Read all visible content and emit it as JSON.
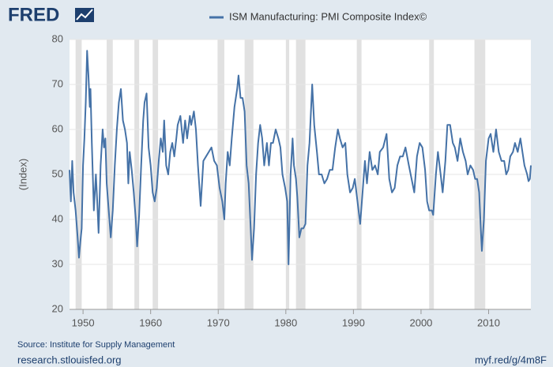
{
  "chart_data": {
    "type": "line",
    "logo": "FRED",
    "ylabel": "(Index)",
    "source": "Source: Institute for Supply Management",
    "site": "research.stlouisfed.org",
    "short_url": "myf.red/g/4m8F",
    "xlim": [
      1948,
      2016.25
    ],
    "xticks": [
      1950,
      1960,
      1970,
      1980,
      1990,
      2000,
      2010
    ],
    "ylim": [
      20,
      80
    ],
    "yticks": [
      20,
      30,
      40,
      50,
      60,
      70,
      80
    ],
    "grid": true,
    "recession_color": "#e1e1e1",
    "recessions": [
      [
        1948.9,
        1949.8
      ],
      [
        1953.5,
        1954.4
      ],
      [
        1957.6,
        1958.3
      ],
      [
        1960.3,
        1961.1
      ],
      [
        1969.9,
        1970.9
      ],
      [
        1973.9,
        1975.2
      ],
      [
        1980.0,
        1980.5
      ],
      [
        1981.5,
        1982.9
      ],
      [
        1990.5,
        1991.2
      ],
      [
        2001.2,
        2001.9
      ],
      [
        2007.9,
        2009.5
      ]
    ],
    "series": [
      {
        "name": "ISM Manufacturing: PMI Composite Index©",
        "color": "#4572a7",
        "x": [
          1948.0,
          1948.2,
          1948.4,
          1948.6,
          1948.9,
          1949.2,
          1949.4,
          1949.6,
          1949.8,
          1950.0,
          1950.2,
          1950.4,
          1950.6,
          1950.8,
          1951.0,
          1951.1,
          1951.3,
          1951.5,
          1951.6,
          1951.9,
          1952.1,
          1952.3,
          1952.6,
          1952.9,
          1953.1,
          1953.3,
          1953.5,
          1953.8,
          1954.1,
          1954.4,
          1954.7,
          1955.0,
          1955.3,
          1955.6,
          1955.9,
          1956.2,
          1956.5,
          1956.7,
          1956.9,
          1957.2,
          1957.5,
          1957.8,
          1958.0,
          1958.3,
          1958.6,
          1958.9,
          1959.1,
          1959.4,
          1959.7,
          1960.0,
          1960.3,
          1960.6,
          1960.9,
          1961.2,
          1961.5,
          1961.8,
          1962.0,
          1962.3,
          1962.6,
          1962.9,
          1963.2,
          1963.5,
          1963.8,
          1964.0,
          1964.4,
          1964.8,
          1965.1,
          1965.4,
          1965.8,
          1966.0,
          1966.4,
          1966.7,
          1967.0,
          1967.4,
          1967.8,
          1968.2,
          1968.6,
          1969.0,
          1969.4,
          1969.8,
          1970.2,
          1970.6,
          1970.9,
          1971.1,
          1971.4,
          1971.7,
          1972.0,
          1972.4,
          1972.8,
          1973.0,
          1973.3,
          1973.6,
          1973.9,
          1974.2,
          1974.5,
          1974.8,
          1975.0,
          1975.3,
          1975.6,
          1975.9,
          1976.2,
          1976.5,
          1976.8,
          1977.2,
          1977.5,
          1977.8,
          1978.1,
          1978.5,
          1978.9,
          1979.2,
          1979.5,
          1979.9,
          1980.2,
          1980.4,
          1980.7,
          1981.0,
          1981.2,
          1981.5,
          1981.7,
          1982.0,
          1982.3,
          1982.6,
          1982.9,
          1983.2,
          1983.5,
          1983.9,
          1984.2,
          1984.6,
          1984.9,
          1985.3,
          1985.7,
          1986.1,
          1986.5,
          1986.9,
          1987.3,
          1987.7,
          1988.0,
          1988.4,
          1988.8,
          1989.1,
          1989.5,
          1989.9,
          1990.2,
          1990.6,
          1991.0,
          1991.3,
          1991.7,
          1992.0,
          1992.4,
          1992.8,
          1993.2,
          1993.6,
          1993.9,
          1994.4,
          1994.9,
          1995.3,
          1995.7,
          1996.1,
          1996.5,
          1996.9,
          1997.3,
          1997.7,
          1998.2,
          1998.6,
          1999.0,
          1999.4,
          1999.8,
          2000.2,
          2000.6,
          2000.9,
          2001.2,
          2001.6,
          2001.8,
          2002.2,
          2002.5,
          2002.9,
          2003.2,
          2003.6,
          2003.9,
          2004.3,
          2004.7,
          2005.0,
          2005.4,
          2005.8,
          2006.2,
          2006.6,
          2006.9,
          2007.3,
          2007.7,
          2008.0,
          2008.3,
          2008.6,
          2008.9,
          2009.0,
          2009.3,
          2009.6,
          2010.0,
          2010.3,
          2010.7,
          2011.1,
          2011.5,
          2011.9,
          2012.3,
          2012.6,
          2012.9,
          2013.2,
          2013.6,
          2013.9,
          2014.3,
          2014.7,
          2014.9,
          2015.3,
          2015.7,
          2015.9,
          2016.1,
          2016.25
        ],
        "values": [
          51,
          44,
          53,
          46,
          42,
          36,
          31.5,
          35,
          38,
          52,
          58,
          66,
          77.5,
          72,
          65,
          69,
          57,
          47,
          42,
          50,
          44,
          37,
          52,
          60,
          56,
          58,
          48,
          42,
          36,
          42,
          52,
          60,
          66,
          69,
          62,
          60,
          57,
          48,
          55,
          51,
          46,
          40,
          34,
          41,
          52,
          62,
          66,
          68,
          56,
          52,
          46,
          44,
          47,
          53,
          58,
          55,
          62,
          52,
          50,
          55,
          57,
          54,
          58,
          61,
          63,
          57,
          62,
          58,
          63,
          61,
          64,
          60,
          52,
          43,
          53,
          54,
          55,
          56,
          53,
          52,
          47,
          44,
          40,
          48,
          55,
          52,
          58,
          65,
          69,
          72,
          67,
          67,
          64,
          52,
          48,
          38,
          31,
          38,
          50,
          57,
          61,
          58,
          52,
          57,
          52,
          57,
          57,
          60,
          58,
          56,
          50,
          47,
          44,
          30,
          50,
          58,
          52,
          49,
          45,
          36,
          38,
          38,
          39,
          52,
          57,
          70,
          61,
          55,
          50,
          50,
          48,
          49,
          51,
          51,
          56,
          60,
          58,
          56,
          57,
          50,
          46,
          47,
          49,
          44,
          39,
          45,
          53,
          48,
          55,
          51,
          52,
          50,
          55,
          56,
          59,
          49,
          46,
          47,
          52,
          54,
          54,
          56,
          52,
          49,
          46,
          54,
          57,
          56,
          51,
          44,
          42,
          42,
          41,
          50,
          55,
          50,
          46,
          53,
          61,
          61,
          57,
          56,
          53,
          58,
          55,
          53,
          50,
          52,
          51,
          49,
          49,
          46,
          36,
          33,
          40,
          53,
          58,
          59,
          55,
          60,
          55,
          53,
          53,
          50,
          51,
          54,
          55,
          57,
          55,
          58,
          56,
          52,
          50,
          48.5,
          49,
          52
        ]
      }
    ]
  }
}
